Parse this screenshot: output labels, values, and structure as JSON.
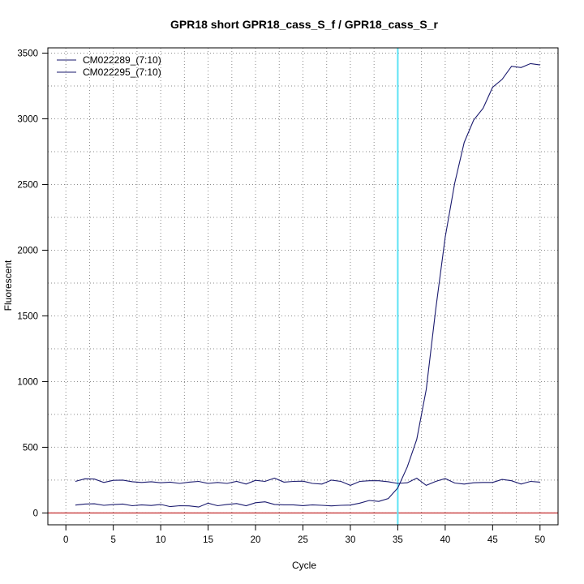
{
  "chart_data": {
    "type": "line",
    "title": "GPR18 short GPR18_cass_S_f / GPR18_cass_S_r",
    "xlabel": "Cycle",
    "ylabel": "Fluorescent",
    "xlim": [
      -1.9,
      51.9
    ],
    "ylim": [
      -90,
      3540
    ],
    "x_ticks": [
      0,
      5,
      10,
      15,
      20,
      25,
      30,
      35,
      40,
      45,
      50
    ],
    "y_ticks": [
      0,
      500,
      1000,
      1500,
      2000,
      2500,
      3000,
      3500
    ],
    "grid": true,
    "legend_position": "top-left",
    "threshold": {
      "value": 0,
      "color": "#c8393b"
    },
    "cycle_marker": {
      "value": 35,
      "color": "#5de3f5"
    },
    "x": [
      1,
      2,
      3,
      4,
      5,
      6,
      7,
      8,
      9,
      10,
      11,
      12,
      13,
      14,
      15,
      16,
      17,
      18,
      19,
      20,
      21,
      22,
      23,
      24,
      25,
      26,
      27,
      28,
      29,
      30,
      31,
      32,
      33,
      34,
      35,
      36,
      37,
      38,
      39,
      40,
      41,
      42,
      43,
      44,
      45,
      46,
      47,
      48,
      49,
      50
    ],
    "series": [
      {
        "name": "CM022289_(7:10)",
        "color": "#1a1a6e",
        "values": [
          60,
          68,
          70,
          58,
          64,
          68,
          55,
          62,
          57,
          65,
          48,
          55,
          54,
          45,
          75,
          55,
          65,
          72,
          55,
          78,
          85,
          65,
          62,
          62,
          56,
          62,
          58,
          54,
          58,
          60,
          75,
          95,
          88,
          110,
          190,
          350,
          560,
          940,
          1550,
          2100,
          2510,
          2820,
          2990,
          3080,
          3240,
          3300,
          3400,
          3390,
          3420,
          3410
        ]
      },
      {
        "name": "CM022295_(7:10)",
        "color": "#1a1a6e",
        "values": [
          240,
          260,
          258,
          232,
          248,
          250,
          238,
          232,
          238,
          230,
          235,
          225,
          235,
          240,
          225,
          232,
          225,
          240,
          220,
          248,
          240,
          265,
          235,
          240,
          242,
          225,
          220,
          250,
          240,
          210,
          240,
          245,
          245,
          238,
          225,
          230,
          265,
          210,
          240,
          262,
          228,
          220,
          230,
          232,
          232,
          255,
          245,
          220,
          240,
          235
        ]
      }
    ]
  }
}
